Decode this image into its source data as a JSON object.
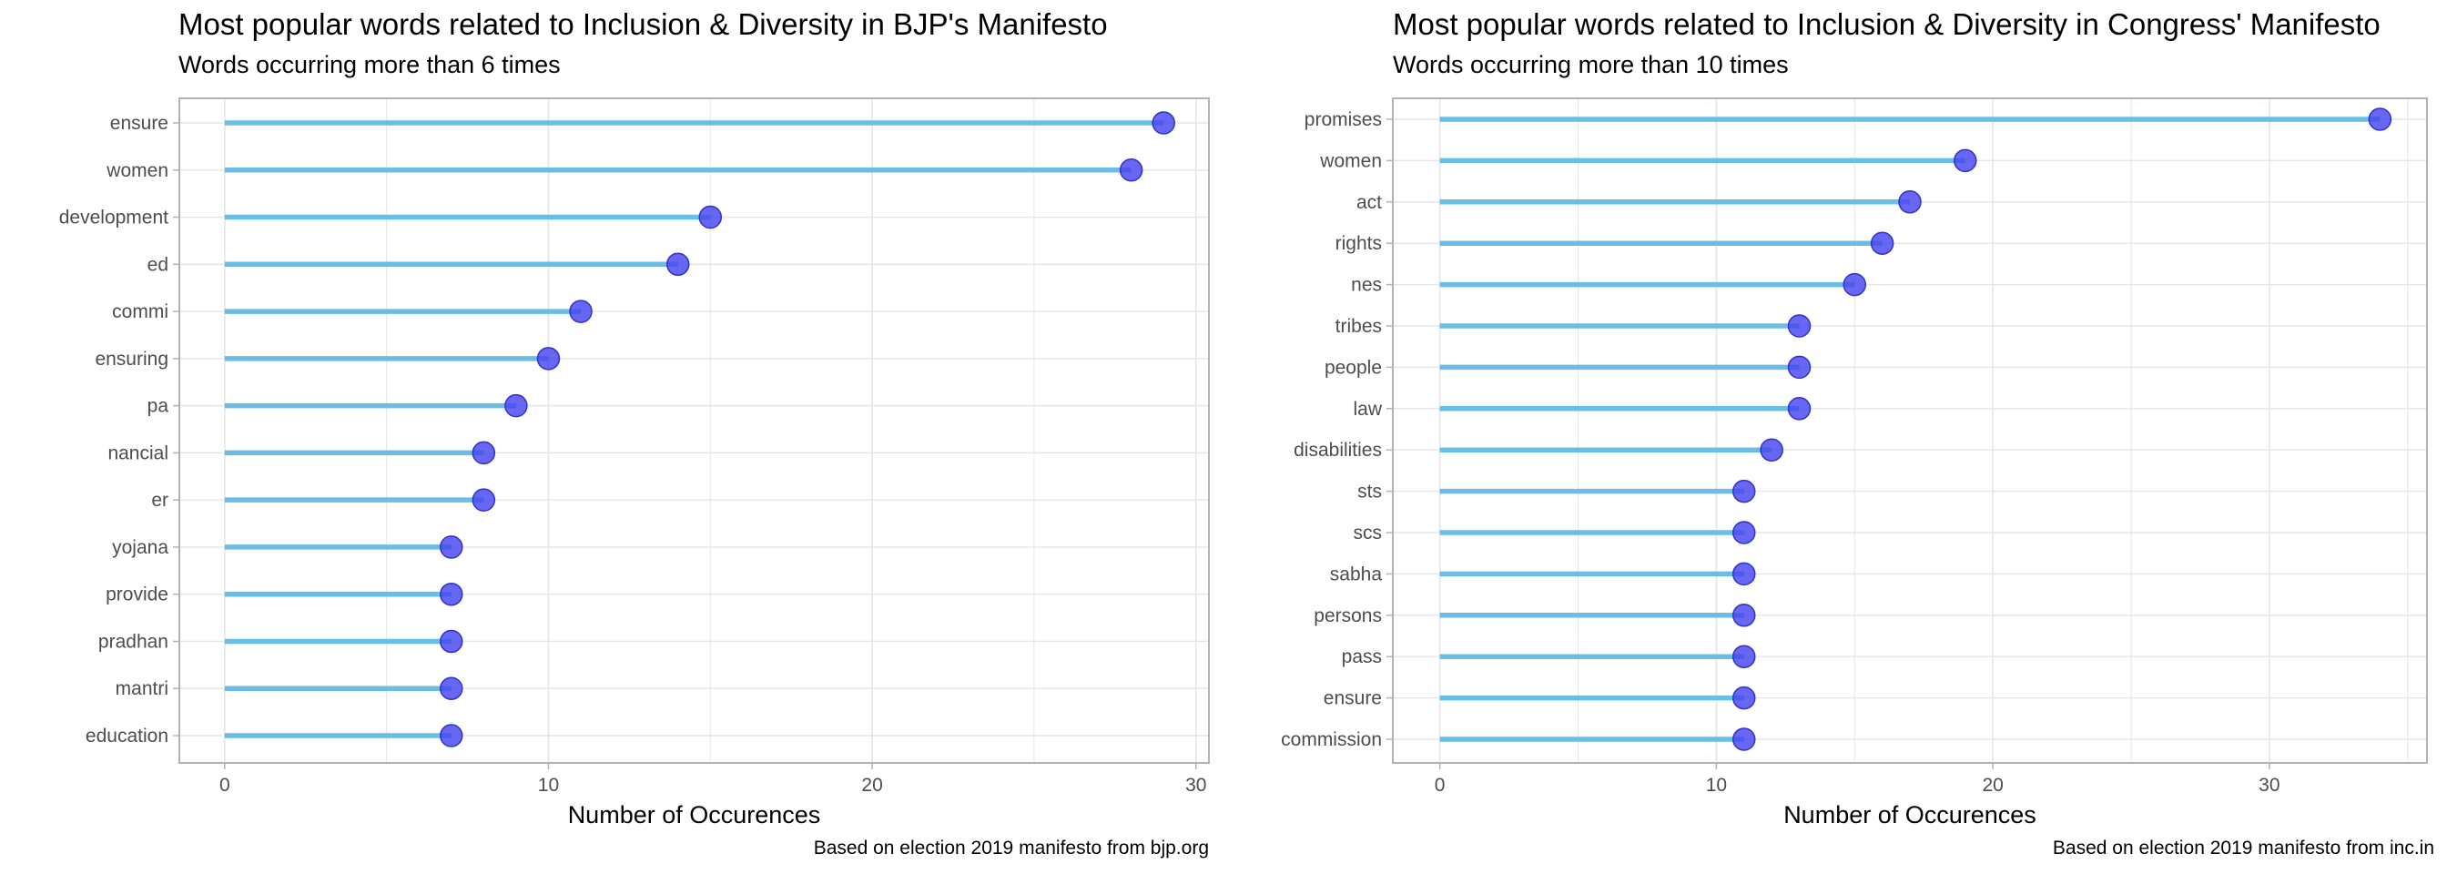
{
  "chart_data": [
    {
      "type": "lollipop",
      "orientation": "horizontal",
      "title": "Most popular words related to Inclusion & Diversity in BJP's Manifesto",
      "subtitle": "Words occurring more than 6 times",
      "xlabel": "Number of Occurences",
      "ylabel": "",
      "caption": "Based on election 2019 manifesto from bjp.org",
      "xlim": [
        -1.4,
        30.4
      ],
      "xticks": [
        0,
        10,
        20,
        30
      ],
      "tick_labels": [
        "0",
        "10",
        "20",
        "30"
      ],
      "categories": [
        "ensure",
        "women",
        "development",
        "ed",
        "commi",
        "ensuring",
        "pa",
        "nancial",
        "er",
        "yojana",
        "provide",
        "pradhan",
        "mantri",
        "education"
      ],
      "values": [
        29,
        28,
        15,
        14,
        11,
        10,
        9,
        8,
        8,
        7,
        7,
        7,
        7,
        7
      ],
      "colors": {
        "stem": "#6BBDE3",
        "point": "#4646F0",
        "point_edge": "#3232C8",
        "grid": "#E6E6E6",
        "frame": "#B3B3B3",
        "tick_text": "#4D4D4D"
      }
    },
    {
      "type": "lollipop",
      "orientation": "horizontal",
      "title": "Most popular words related to Inclusion & Diversity in Congress' Manifesto",
      "subtitle": "Words occurring more than 10 times",
      "xlabel": "Number of Occurences",
      "ylabel": "",
      "caption": "Based on election 2019 manifesto from inc.in",
      "xlim": [
        -1.7,
        35.7
      ],
      "xticks": [
        0,
        10,
        20,
        30
      ],
      "tick_labels": [
        "0",
        "10",
        "20",
        "30"
      ],
      "categories": [
        "promises",
        "women",
        "act",
        "rights",
        "nes",
        "tribes",
        "people",
        "law",
        "disabilities",
        "sts",
        "scs",
        "sabha",
        "persons",
        "pass",
        "ensure",
        "commission"
      ],
      "values": [
        34,
        19,
        17,
        16,
        15,
        13,
        13,
        13,
        12,
        11,
        11,
        11,
        11,
        11,
        11,
        11
      ],
      "colors": {
        "stem": "#6BBDE3",
        "point": "#4646F0",
        "point_edge": "#3232C8",
        "grid": "#E6E6E6",
        "frame": "#B3B3B3",
        "tick_text": "#4D4D4D"
      }
    }
  ]
}
